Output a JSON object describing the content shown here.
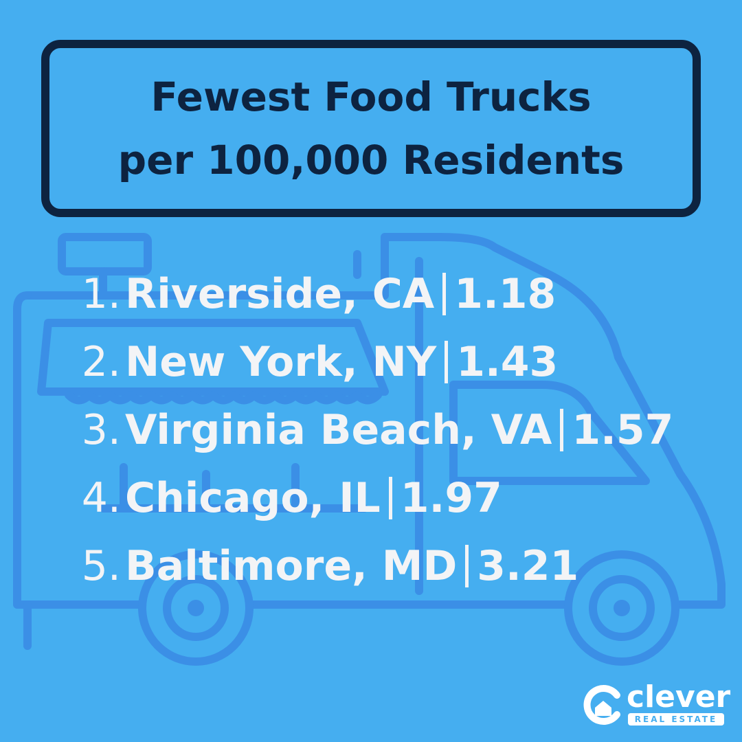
{
  "title": [
    "Fewest Food Trucks",
    "per 100,000 Residents"
  ],
  "items": [
    {
      "rank": "1.",
      "place": "Riverside, CA",
      "value": 1.18
    },
    {
      "rank": "2.",
      "place": "New York, NY",
      "value": 1.43
    },
    {
      "rank": "3.",
      "place": "Virginia Beach, VA",
      "value": 1.57
    },
    {
      "rank": "4.",
      "place": "Chicago, IL",
      "value": 1.97
    },
    {
      "rank": "5.",
      "place": "Baltimore, MD",
      "value": 3.21
    }
  ],
  "logo": {
    "name": "clever",
    "tagline": "REAL ESTATE"
  }
}
